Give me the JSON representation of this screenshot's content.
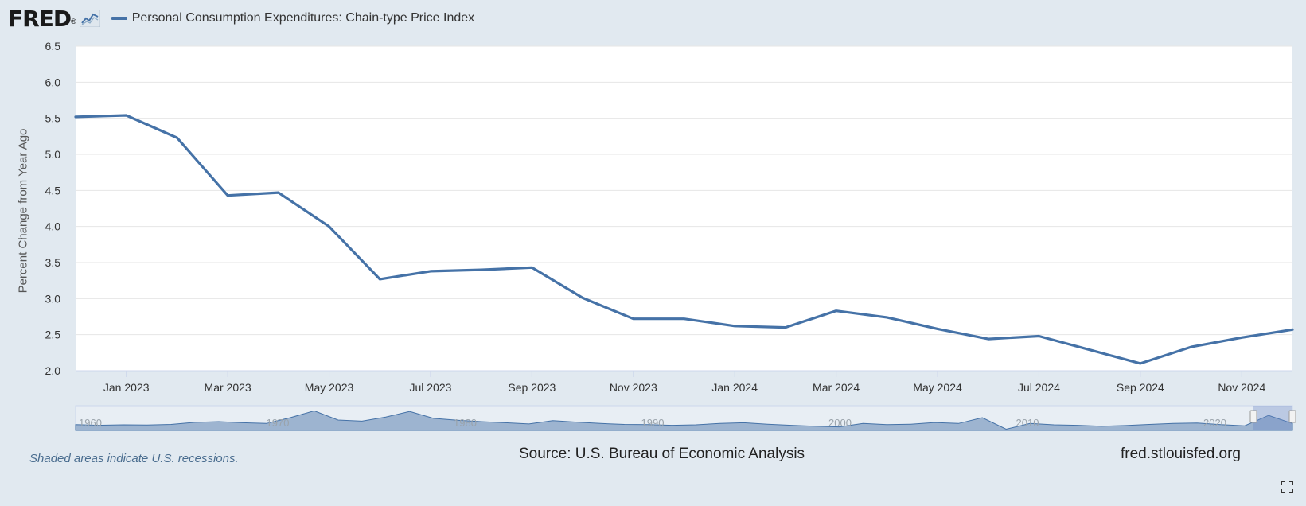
{
  "header": {
    "logo_text": "FRED",
    "logo_registered": "®",
    "legend_label": "Personal Consumption Expenditures: Chain-type Price Index",
    "legend_color": "#4572a7"
  },
  "chart_data": {
    "type": "line",
    "title": "Personal Consumption Expenditures: Chain-type Price Index",
    "ylabel": "Percent Change from Year Ago",
    "xlabel": "",
    "ylim": [
      2.0,
      6.5
    ],
    "yticks": [
      "2.0",
      "2.5",
      "3.0",
      "3.5",
      "4.0",
      "4.5",
      "5.0",
      "5.5",
      "6.0",
      "6.5"
    ],
    "x_domain": [
      "2022-12",
      "2024-12"
    ],
    "xtick_labels": [
      "Jan 2023",
      "Mar 2023",
      "May 2023",
      "Jul 2023",
      "Sep 2023",
      "Nov 2023",
      "Jan 2024",
      "Mar 2024",
      "May 2024",
      "Jul 2024",
      "Sep 2024",
      "Nov 2024"
    ],
    "grid": true,
    "series": [
      {
        "name": "Personal Consumption Expenditures: Chain-type Price Index",
        "color": "#4572a7",
        "x": [
          "2022-12",
          "2023-01",
          "2023-02",
          "2023-03",
          "2023-04",
          "2023-05",
          "2023-06",
          "2023-07",
          "2023-08",
          "2023-09",
          "2023-10",
          "2023-11",
          "2023-12",
          "2024-01",
          "2024-02",
          "2024-03",
          "2024-04",
          "2024-05",
          "2024-06",
          "2024-07",
          "2024-08",
          "2024-09",
          "2024-10",
          "2024-11",
          "2024-12"
        ],
        "values": [
          5.52,
          5.54,
          5.23,
          4.43,
          4.47,
          4.0,
          3.27,
          3.38,
          3.4,
          3.43,
          3.01,
          2.72,
          2.72,
          2.62,
          2.6,
          2.83,
          2.74,
          2.58,
          2.44,
          2.48,
          2.29,
          2.1,
          2.33,
          2.46,
          2.57
        ]
      }
    ],
    "navigator": {
      "labels": [
        "1960",
        "1970",
        "1980",
        "1990",
        "2000",
        "2010",
        "2020"
      ]
    }
  },
  "footer": {
    "recession_note": "Shaded areas indicate U.S. recessions.",
    "source": "Source: U.S. Bureau of Economic Analysis",
    "site": "fred.stlouisfed.org"
  },
  "icons": {
    "logo_mark": "line-chart-icon",
    "fullscreen": "fullscreen-icon"
  }
}
